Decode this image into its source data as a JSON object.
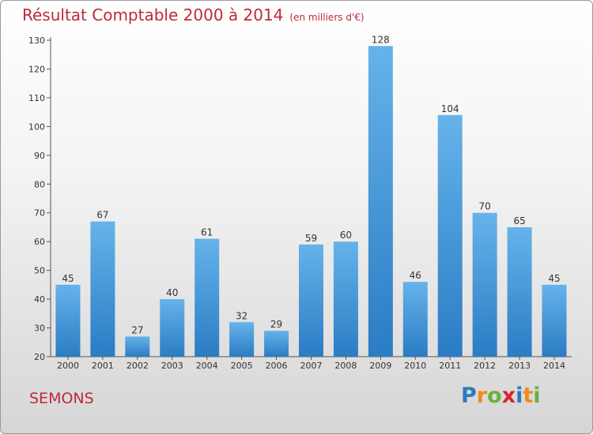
{
  "title": "Résultat Comptable 2000 à 2014",
  "subtitle": "(en milliers d'€)",
  "commune": "SEMONS",
  "logo": {
    "text": "Proxiti",
    "colors": [
      "#2a7ac0",
      "#f08a1c",
      "#6ab23a",
      "#d9232e",
      "#2a7ac0",
      "#f08a1c",
      "#6ab23a"
    ]
  },
  "colors": {
    "bar": "#3a8fd4",
    "bar_light": "#6cb6ea",
    "title": "#c0283c"
  },
  "chart_data": {
    "type": "bar",
    "title": "Résultat Comptable 2000 à 2014",
    "subtitle": "(en milliers d'€)",
    "xlabel": "",
    "ylabel": "",
    "categories": [
      "2000",
      "2001",
      "2002",
      "2003",
      "2004",
      "2005",
      "2006",
      "2007",
      "2008",
      "2009",
      "2010",
      "2011",
      "2012",
      "2013",
      "2014"
    ],
    "values": [
      45,
      67,
      27,
      40,
      61,
      32,
      29,
      59,
      60,
      128,
      46,
      104,
      70,
      65,
      45
    ],
    "ylim": [
      20,
      130
    ],
    "yticks": [
      20,
      30,
      40,
      50,
      60,
      70,
      80,
      90,
      100,
      110,
      120,
      130
    ],
    "grid": false,
    "legend": "none"
  }
}
